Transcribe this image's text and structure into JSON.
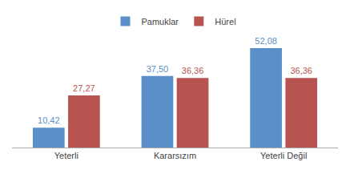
{
  "chart_data": {
    "type": "bar",
    "categories": [
      "Yeterli",
      "Kararsızım",
      "Yeterli Değil"
    ],
    "series": [
      {
        "name": "Pamuklar",
        "color": "#5B8FC9",
        "values": [
          10.42,
          37.5,
          52.08
        ],
        "value_labels": [
          "10,42",
          "37,50",
          "52,08"
        ]
      },
      {
        "name": "Hürel",
        "color": "#B85450",
        "values": [
          27.27,
          36.36,
          36.36
        ],
        "value_labels": [
          "27,27",
          "36,36",
          "36,36"
        ]
      }
    ],
    "ylim": [
      0,
      60
    ],
    "grid": false,
    "legend": "top",
    "data_labels": true,
    "tick_labels": "x"
  }
}
